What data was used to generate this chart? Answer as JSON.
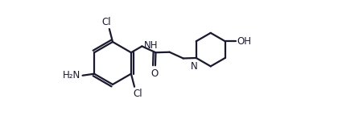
{
  "bg_color": "#ffffff",
  "line_color": "#1a1a2e",
  "line_width": 1.6,
  "font_size": 8.5,
  "fig_w": 4.2,
  "fig_h": 1.59,
  "xlim": [
    -0.7,
    2.05
  ],
  "ylim": [
    -0.52,
    1.0
  ]
}
